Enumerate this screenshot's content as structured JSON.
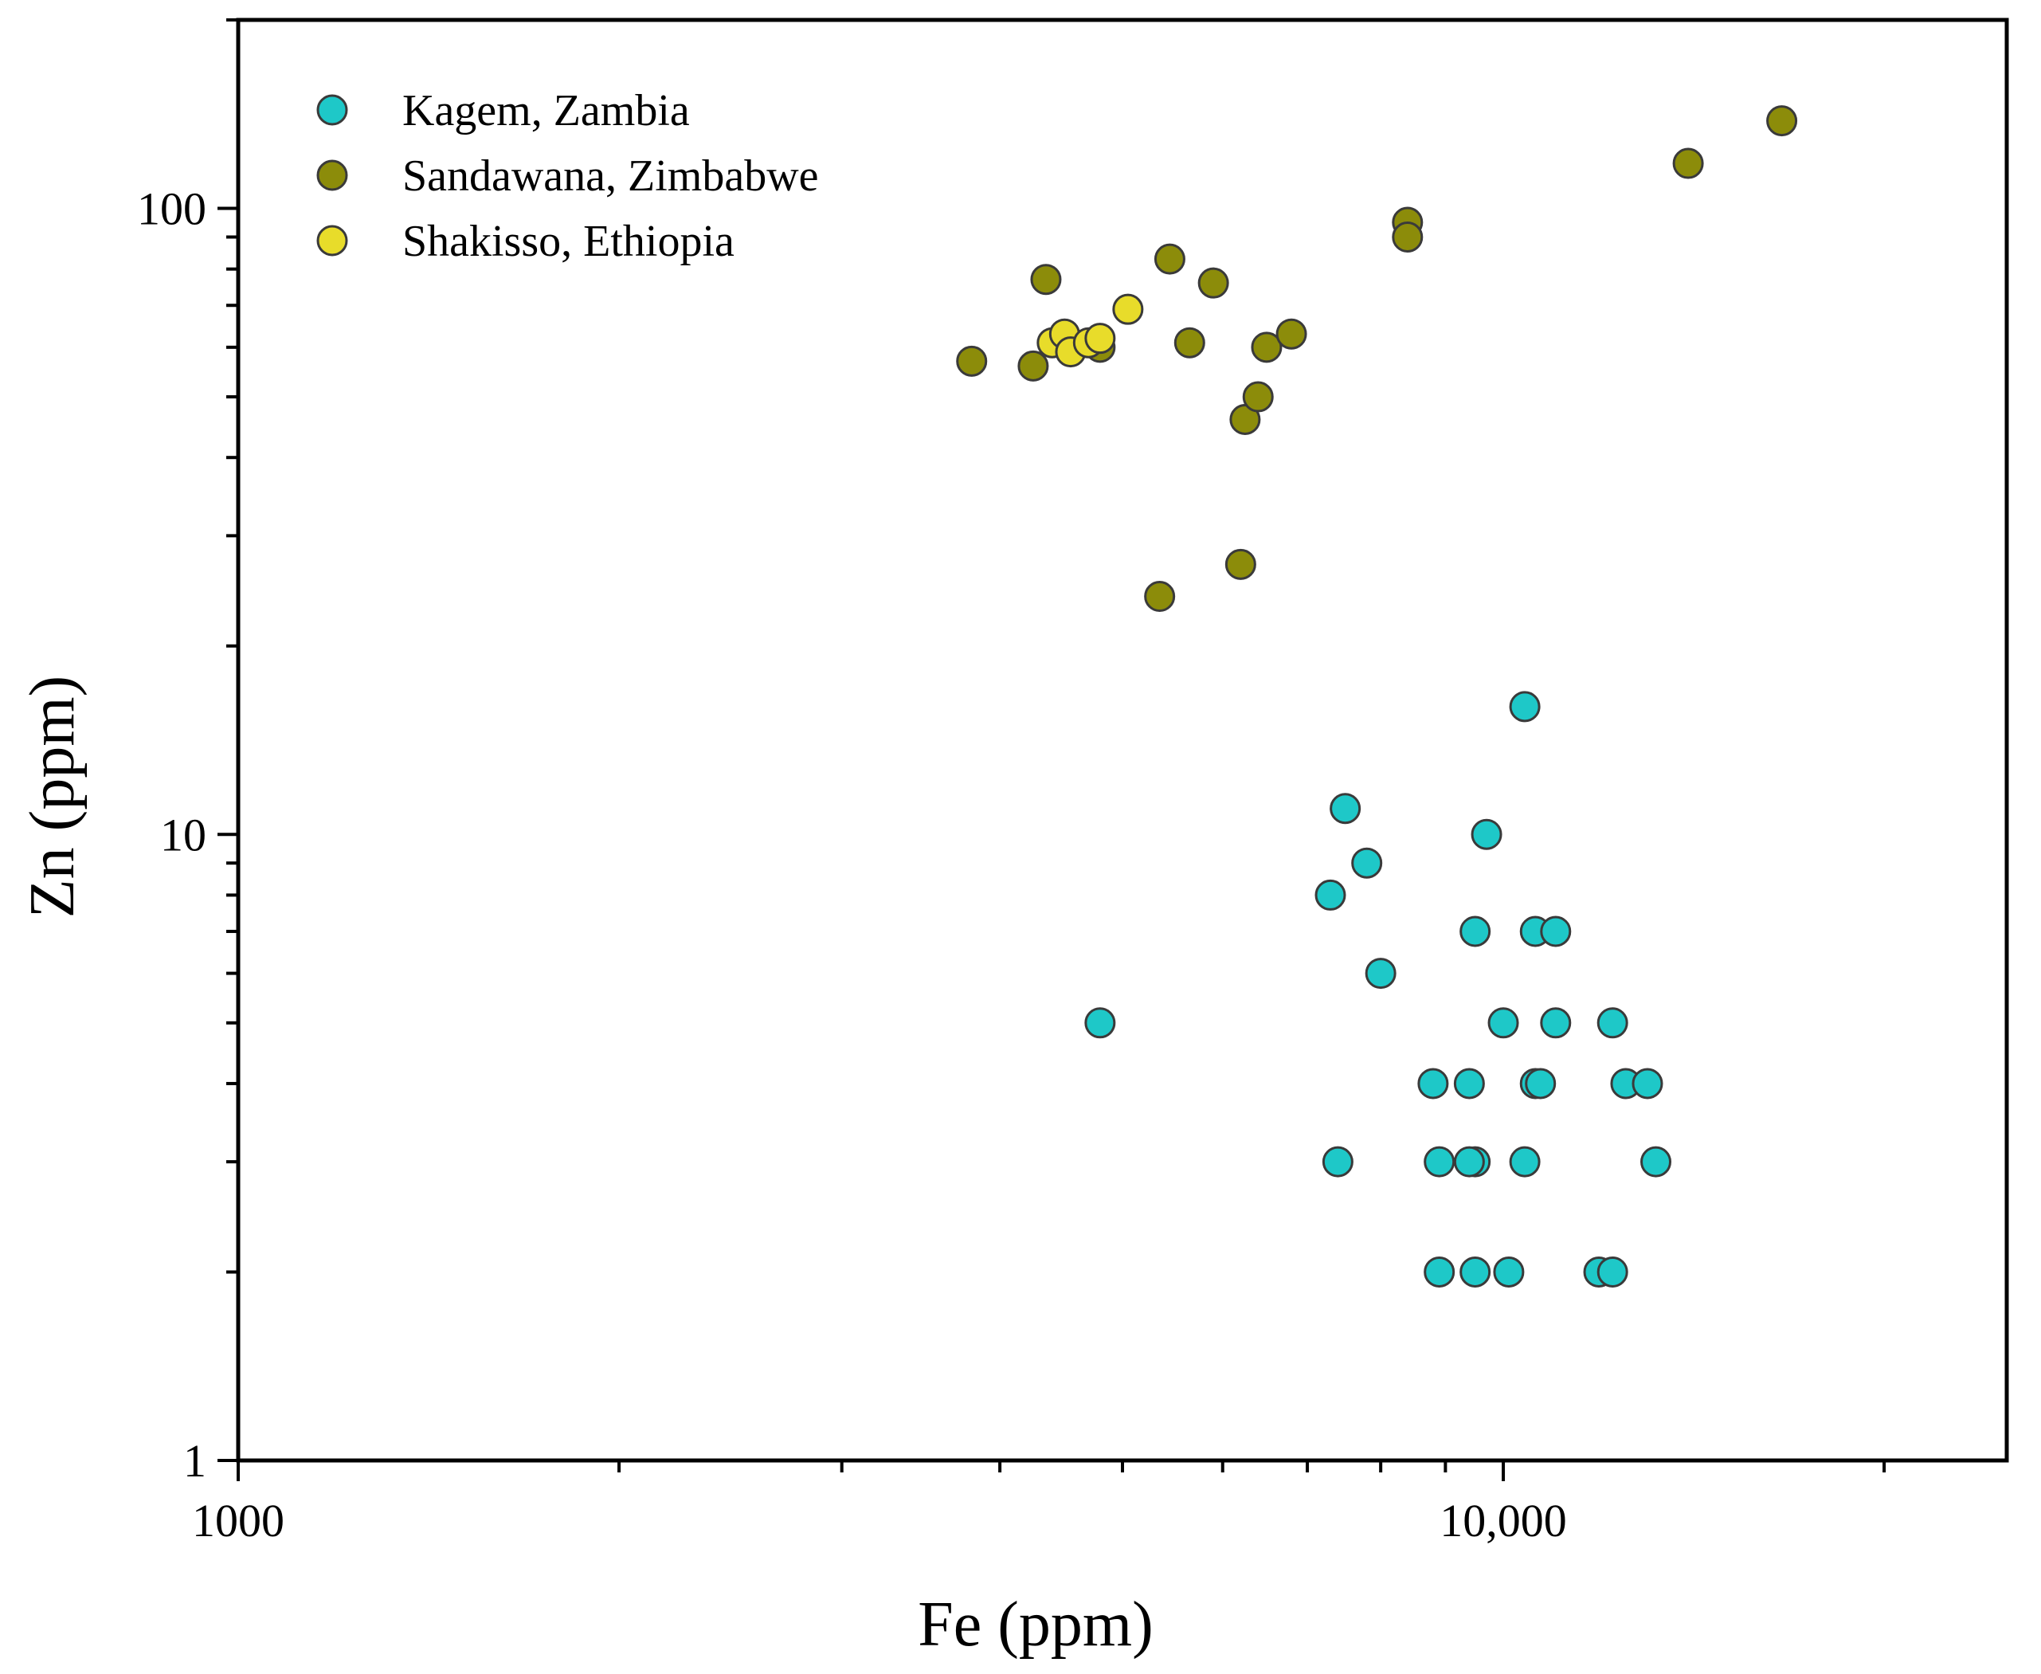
{
  "chart_data": {
    "type": "scatter",
    "title": "",
    "xlabel": "Fe (ppm)",
    "ylabel": "Zn (ppm)",
    "xscale": "log",
    "yscale": "log",
    "xlim": [
      1000,
      25000
    ],
    "ylim": [
      1,
      200
    ],
    "x_major_ticks": [
      {
        "value": 1000,
        "label": "1000"
      },
      {
        "value": 10000,
        "label": "10,000"
      }
    ],
    "x_minor_ticks": [
      2000,
      3000,
      4000,
      5000,
      6000,
      7000,
      8000,
      9000,
      20000
    ],
    "y_major_ticks": [
      {
        "value": 1,
        "label": "1"
      },
      {
        "value": 10,
        "label": "10"
      },
      {
        "value": 100,
        "label": "100"
      }
    ],
    "y_minor_ticks": [
      2,
      3,
      4,
      5,
      6,
      7,
      8,
      9,
      20,
      30,
      40,
      50,
      60,
      70,
      80,
      90,
      200
    ],
    "legend_position": "top-left",
    "series": [
      {
        "name": "Kagem, Zambia",
        "color": "#1EC8C8",
        "points": [
          [
            4800,
            5
          ],
          [
            7300,
            8
          ],
          [
            7500,
            11
          ],
          [
            7800,
            9
          ],
          [
            8000,
            6
          ],
          [
            7400,
            3
          ],
          [
            8800,
            4
          ],
          [
            9400,
            4
          ],
          [
            8900,
            3
          ],
          [
            9500,
            3
          ],
          [
            9400,
            3
          ],
          [
            8900,
            2
          ],
          [
            9500,
            2
          ],
          [
            9500,
            7
          ],
          [
            9700,
            10
          ],
          [
            10000,
            5
          ],
          [
            10400,
            3
          ],
          [
            10100,
            2
          ],
          [
            10400,
            16
          ],
          [
            10600,
            4
          ],
          [
            10700,
            4
          ],
          [
            10600,
            7
          ],
          [
            11000,
            7
          ],
          [
            11000,
            5
          ],
          [
            12200,
            5
          ],
          [
            12500,
            4
          ],
          [
            13000,
            4
          ],
          [
            13200,
            3
          ],
          [
            11900,
            2
          ],
          [
            12200,
            2
          ]
        ]
      },
      {
        "name": "Sandawana, Zimbabwe",
        "color": "#8C8C0A",
        "points": [
          [
            3800,
            57
          ],
          [
            4250,
            56
          ],
          [
            4350,
            77
          ],
          [
            4800,
            60
          ],
          [
            5450,
            83
          ],
          [
            5900,
            76
          ],
          [
            5650,
            61
          ],
          [
            6250,
            46
          ],
          [
            6400,
            50
          ],
          [
            6500,
            60
          ],
          [
            6800,
            63
          ],
          [
            5350,
            24
          ],
          [
            6200,
            27
          ],
          [
            8400,
            95
          ],
          [
            8400,
            90
          ],
          [
            14000,
            118
          ],
          [
            16600,
            138
          ]
        ]
      },
      {
        "name": "Shakisso, Ethiopia",
        "color": "#E8DC2A",
        "points": [
          [
            4400,
            61
          ],
          [
            4500,
            63
          ],
          [
            4550,
            59
          ],
          [
            4700,
            61
          ],
          [
            4800,
            62
          ],
          [
            5050,
            69
          ]
        ]
      }
    ]
  }
}
